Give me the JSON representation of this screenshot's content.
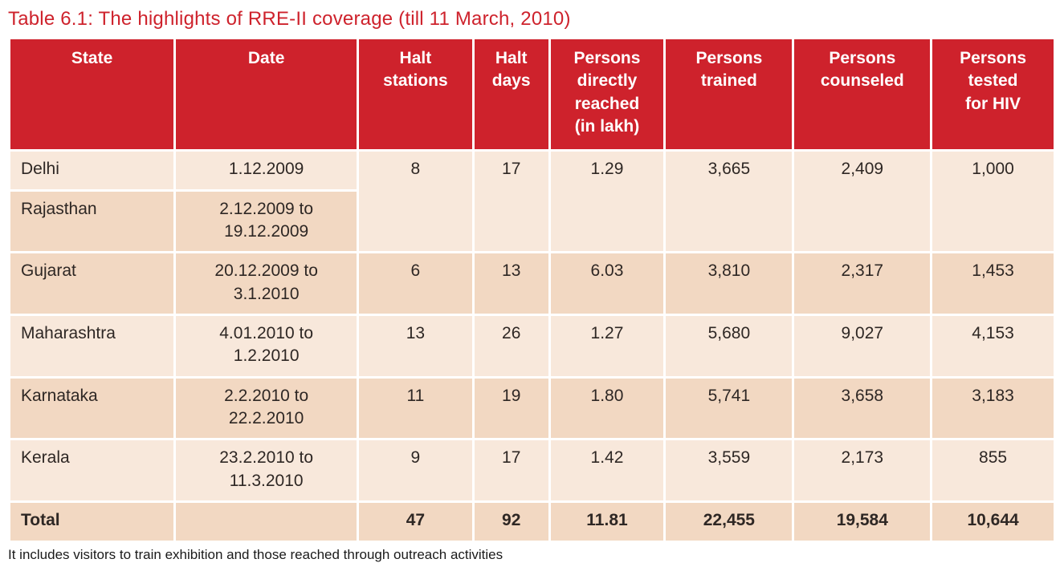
{
  "page": {
    "title": "Table 6.1: The highlights of RRE-II coverage (till 11 March, 2010)",
    "footnote": "It includes visitors to train exhibition and those reached through outreach activities"
  },
  "colors": {
    "title_red": "#CE222C",
    "header_bg": "#CE222C",
    "header_text": "#FFFFFF",
    "row_light": "#F8E8DB",
    "row_dark": "#F2D8C2",
    "body_text": "#2E2724"
  },
  "table": {
    "columns": [
      {
        "id": "state",
        "lines": [
          "State"
        ]
      },
      {
        "id": "date",
        "lines": [
          "Date"
        ]
      },
      {
        "id": "halt-stations",
        "lines": [
          "Halt",
          "stations"
        ]
      },
      {
        "id": "halt-days",
        "lines": [
          "Halt",
          "days"
        ]
      },
      {
        "id": "persons-directly-reached",
        "lines": [
          "Persons",
          "directly",
          "reached",
          "(in lakh)"
        ]
      },
      {
        "id": "persons-trained",
        "lines": [
          "Persons",
          "trained"
        ]
      },
      {
        "id": "persons-counseled",
        "lines": [
          "Persons",
          "counseled"
        ]
      },
      {
        "id": "persons-tested-for-hiv",
        "lines": [
          "Persons",
          "tested",
          "for HIV"
        ]
      }
    ],
    "rows": [
      {
        "state": "Delhi",
        "date_lines": [
          "1.12.2009"
        ],
        "values": [
          "8",
          "17",
          "1.29",
          "3,665",
          "2,409",
          "1,000"
        ],
        "shade": "light",
        "merge": "start"
      },
      {
        "state": "Rajasthan",
        "date_lines": [
          "2.12.2009 to",
          "19.12.2009"
        ],
        "values": null,
        "shade": "dark",
        "merge": "covered"
      },
      {
        "state": "Gujarat",
        "date_lines": [
          "20.12.2009 to",
          "3.1.2010"
        ],
        "values": [
          "6",
          "13",
          "6.03",
          "3,810",
          "2,317",
          "1,453"
        ],
        "shade": "dark",
        "merge": null
      },
      {
        "state": "Maharashtra",
        "date_lines": [
          "4.01.2010 to",
          "1.2.2010"
        ],
        "values": [
          "13",
          "26",
          "1.27",
          "5,680",
          "9,027",
          "4,153"
        ],
        "shade": "light",
        "merge": null
      },
      {
        "state": "Karnataka",
        "date_lines": [
          "2.2.2010 to",
          "22.2.2010"
        ],
        "values": [
          "11",
          "19",
          "1.80",
          "5,741",
          "3,658",
          "3,183"
        ],
        "shade": "dark",
        "merge": null
      },
      {
        "state": "Kerala",
        "date_lines": [
          "23.2.2010 to",
          "11.3.2010"
        ],
        "values": [
          "9",
          "17",
          "1.42",
          "3,559",
          "2,173",
          "855"
        ],
        "shade": "light",
        "merge": null
      }
    ],
    "total_row": {
      "label": "Total",
      "values": [
        "47",
        "92",
        "11.81",
        "22,455",
        "19,584",
        "10,644"
      ],
      "shade": "dark"
    }
  }
}
